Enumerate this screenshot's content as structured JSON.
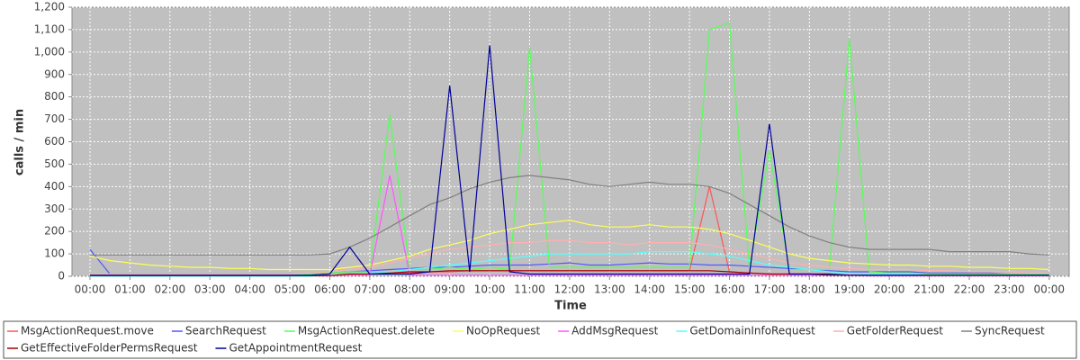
{
  "chart_data": {
    "type": "line",
    "xlabel": "Time",
    "ylabel": "calls / min",
    "x": [
      0,
      0.5,
      1,
      1.5,
      2,
      2.5,
      3,
      3.5,
      4,
      4.5,
      5,
      5.5,
      6,
      6.5,
      7,
      7.5,
      8,
      8.5,
      9,
      9.5,
      10,
      10.5,
      11,
      11.5,
      12,
      12.5,
      13,
      13.5,
      14,
      14.5,
      15,
      15.5,
      16,
      16.5,
      17,
      17.5,
      18,
      18.5,
      19,
      19.5,
      20,
      20.5,
      21,
      21.5,
      22,
      22.5,
      23,
      23.5,
      24
    ],
    "series": [
      {
        "name": "MsgActionRequest.move",
        "color": "#ff5555",
        "values": [
          5,
          5,
          5,
          5,
          5,
          5,
          5,
          5,
          5,
          5,
          5,
          5,
          5,
          10,
          10,
          10,
          15,
          20,
          20,
          25,
          25,
          25,
          25,
          25,
          25,
          25,
          25,
          25,
          25,
          25,
          25,
          400,
          20,
          15,
          10,
          10,
          10,
          5,
          5,
          5,
          5,
          5,
          5,
          5,
          5,
          5,
          5,
          5,
          5
        ]
      },
      {
        "name": "SearchRequest",
        "color": "#5555ff",
        "values": [
          120,
          10,
          10,
          10,
          10,
          10,
          10,
          10,
          10,
          10,
          10,
          10,
          15,
          20,
          25,
          30,
          35,
          40,
          40,
          45,
          50,
          50,
          50,
          55,
          60,
          50,
          50,
          55,
          60,
          55,
          55,
          50,
          50,
          45,
          40,
          35,
          30,
          25,
          20,
          20,
          20,
          20,
          15,
          15,
          15,
          15,
          10,
          10,
          10
        ]
      },
      {
        "name": "MsgActionRequest.delete",
        "color": "#55ff55",
        "values": [
          10,
          10,
          10,
          10,
          10,
          10,
          10,
          10,
          10,
          10,
          10,
          10,
          15,
          20,
          20,
          720,
          30,
          30,
          40,
          30,
          40,
          30,
          1020,
          40,
          40,
          40,
          40,
          40,
          40,
          40,
          40,
          1100,
          1130,
          40,
          560,
          30,
          30,
          30,
          1060,
          20,
          15,
          15,
          10,
          10,
          10,
          10,
          10,
          10,
          10
        ]
      },
      {
        "name": "NoOpRequest",
        "color": "#ffff55",
        "values": [
          90,
          70,
          60,
          50,
          45,
          40,
          40,
          35,
          35,
          30,
          30,
          30,
          30,
          40,
          50,
          70,
          90,
          120,
          140,
          160,
          190,
          210,
          230,
          240,
          250,
          230,
          220,
          220,
          230,
          220,
          220,
          210,
          190,
          160,
          130,
          100,
          80,
          70,
          60,
          55,
          50,
          50,
          45,
          45,
          40,
          40,
          35,
          35,
          30
        ]
      },
      {
        "name": "AddMsgRequest",
        "color": "#ff55ff",
        "values": [
          2,
          2,
          2,
          2,
          2,
          2,
          2,
          2,
          2,
          2,
          2,
          2,
          2,
          5,
          5,
          450,
          5,
          5,
          5,
          5,
          5,
          5,
          5,
          5,
          5,
          5,
          5,
          5,
          5,
          5,
          5,
          5,
          5,
          5,
          5,
          5,
          5,
          5,
          5,
          2,
          2,
          2,
          2,
          2,
          2,
          2,
          2,
          2,
          2
        ]
      },
      {
        "name": "GetDomainInfoRequest",
        "color": "#55ffff",
        "values": [
          0,
          0,
          0,
          0,
          0,
          0,
          0,
          0,
          0,
          0,
          0,
          0,
          5,
          10,
          15,
          20,
          30,
          40,
          50,
          60,
          70,
          80,
          90,
          100,
          100,
          100,
          100,
          100,
          110,
          110,
          110,
          100,
          90,
          70,
          50,
          40,
          30,
          20,
          15,
          10,
          10,
          10,
          5,
          5,
          5,
          5,
          5,
          5,
          5
        ]
      },
      {
        "name": "GetFolderRequest",
        "color": "#ffafaf",
        "values": [
          10,
          10,
          10,
          10,
          10,
          10,
          10,
          10,
          10,
          10,
          10,
          15,
          20,
          30,
          40,
          60,
          80,
          100,
          120,
          130,
          140,
          150,
          150,
          160,
          160,
          150,
          150,
          140,
          150,
          150,
          150,
          140,
          120,
          100,
          80,
          60,
          50,
          40,
          35,
          30,
          30,
          30,
          25,
          25,
          20,
          20,
          20,
          15,
          15
        ]
      },
      {
        "name": "SyncRequest",
        "color": "#808080",
        "values": [
          95,
          95,
          95,
          95,
          95,
          95,
          95,
          95,
          95,
          95,
          95,
          95,
          100,
          130,
          170,
          220,
          270,
          320,
          350,
          390,
          420,
          440,
          450,
          440,
          430,
          410,
          400,
          410,
          420,
          410,
          410,
          400,
          370,
          320,
          270,
          220,
          180,
          150,
          130,
          120,
          120,
          120,
          120,
          110,
          110,
          110,
          110,
          100,
          95
        ]
      },
      {
        "name": "GetEffectiveFolderPermsRequest",
        "color": "#a00000",
        "values": [
          3,
          3,
          3,
          3,
          3,
          3,
          3,
          3,
          3,
          3,
          3,
          3,
          3,
          10,
          10,
          15,
          20,
          20,
          25,
          25,
          25,
          25,
          25,
          25,
          25,
          25,
          25,
          25,
          25,
          25,
          25,
          25,
          20,
          15,
          10,
          10,
          10,
          5,
          5,
          5,
          5,
          5,
          5,
          5,
          5,
          5,
          5,
          5,
          5
        ]
      },
      {
        "name": "GetAppointmentRequest",
        "color": "#000099",
        "values": [
          5,
          5,
          5,
          5,
          5,
          5,
          5,
          5,
          5,
          5,
          5,
          5,
          10,
          130,
          10,
          10,
          10,
          20,
          850,
          20,
          1030,
          20,
          10,
          10,
          10,
          10,
          10,
          10,
          10,
          10,
          10,
          10,
          10,
          10,
          680,
          10,
          10,
          10,
          5,
          5,
          5,
          5,
          5,
          5,
          5,
          5,
          5,
          5,
          5
        ]
      }
    ],
    "xlim": [
      -0.45,
      24.5
    ],
    "xticks": [
      {
        "value": 0,
        "label": "00:00"
      },
      {
        "value": 1,
        "label": "01:00"
      },
      {
        "value": 2,
        "label": "02:00"
      },
      {
        "value": 3,
        "label": "03:00"
      },
      {
        "value": 4,
        "label": "04:00"
      },
      {
        "value": 5,
        "label": "05:00"
      },
      {
        "value": 6,
        "label": "06:00"
      },
      {
        "value": 7,
        "label": "07:00"
      },
      {
        "value": 8,
        "label": "08:00"
      },
      {
        "value": 9,
        "label": "09:00"
      },
      {
        "value": 10,
        "label": "10:00"
      },
      {
        "value": 11,
        "label": "11:00"
      },
      {
        "value": 12,
        "label": "12:00"
      },
      {
        "value": 13,
        "label": "13:00"
      },
      {
        "value": 14,
        "label": "14:00"
      },
      {
        "value": 15,
        "label": "15:00"
      },
      {
        "value": 16,
        "label": "16:00"
      },
      {
        "value": 17,
        "label": "17:00"
      },
      {
        "value": 18,
        "label": "18:00"
      },
      {
        "value": 19,
        "label": "19:00"
      },
      {
        "value": 20,
        "label": "20:00"
      },
      {
        "value": 21,
        "label": "21:00"
      },
      {
        "value": 22,
        "label": "22:00"
      },
      {
        "value": 23,
        "label": "23:00"
      },
      {
        "value": 24,
        "label": "00:00"
      }
    ],
    "ylim": [
      0,
      1200
    ],
    "yticks": [
      0,
      100,
      200,
      300,
      400,
      500,
      600,
      700,
      800,
      900,
      {
        "value": 1000,
        "label": "1,000"
      },
      {
        "value": 1100,
        "label": "1,100"
      },
      {
        "value": 1200,
        "label": "1,200"
      }
    ],
    "grid": true,
    "legend": "bottom"
  }
}
